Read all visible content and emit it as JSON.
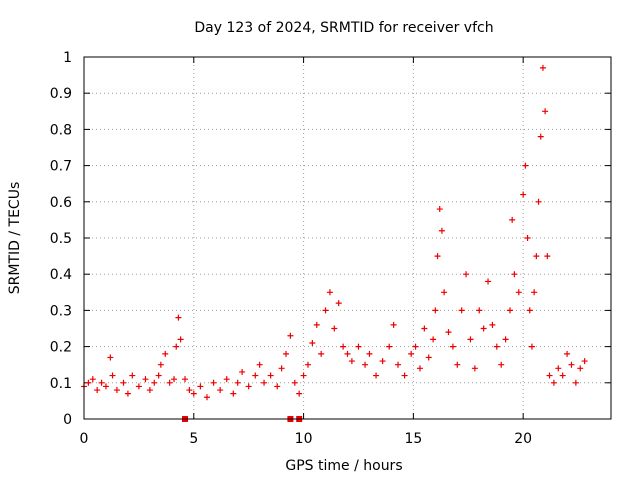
{
  "chart_data": {
    "type": "scatter",
    "title": "Day 123 of 2024, SRMTID for receiver vfch",
    "xlabel": "GPS time / hours",
    "ylabel": "SRMTID / TECUs",
    "xlim": [
      0,
      24
    ],
    "ylim": [
      0,
      1
    ],
    "x_ticks": [
      0,
      5,
      10,
      15,
      20
    ],
    "x_tick_labels": [
      "0",
      "5",
      "10",
      "15",
      "20"
    ],
    "y_ticks": [
      0,
      0.1,
      0.2,
      0.3,
      0.4,
      0.5,
      0.6,
      0.7,
      0.8,
      0.9,
      1
    ],
    "y_tick_labels": [
      "0",
      "0.1",
      "0.2",
      "0.3",
      "0.4",
      "0.5",
      "0.6",
      "0.7",
      "0.8",
      "0.9",
      "1"
    ],
    "grid": true,
    "series": [
      {
        "name": "SRMTID",
        "color": "#ee0000",
        "marker": "plus",
        "x": [
          0.0,
          0.2,
          0.4,
          0.6,
          0.8,
          1.0,
          1.2,
          1.3,
          1.5,
          1.8,
          2.0,
          2.2,
          2.5,
          2.8,
          3.0,
          3.2,
          3.4,
          3.5,
          3.7,
          3.9,
          4.1,
          4.2,
          4.3,
          4.4,
          4.6,
          4.8,
          5.0,
          5.3,
          5.6,
          5.9,
          6.2,
          6.5,
          6.8,
          7.0,
          7.2,
          7.5,
          7.8,
          8.0,
          8.2,
          8.5,
          8.8,
          9.0,
          9.2,
          9.4,
          9.6,
          9.8,
          10.0,
          10.2,
          10.4,
          10.6,
          10.8,
          11.0,
          11.2,
          11.4,
          11.6,
          11.8,
          12.0,
          12.2,
          12.5,
          12.8,
          13.0,
          13.3,
          13.6,
          13.9,
          14.1,
          14.3,
          14.6,
          14.9,
          15.1,
          15.3,
          15.5,
          15.7,
          15.9,
          16.0,
          16.1,
          16.2,
          16.3,
          16.4,
          16.6,
          16.8,
          17.0,
          17.2,
          17.4,
          17.6,
          17.8,
          18.0,
          18.2,
          18.4,
          18.6,
          18.8,
          19.0,
          19.2,
          19.4,
          19.5,
          19.6,
          19.8,
          20.0,
          20.1,
          20.2,
          20.3,
          20.4,
          20.5,
          20.6,
          20.7,
          20.8,
          20.9,
          21.0,
          21.1,
          21.2,
          21.4,
          21.6,
          21.8,
          22.0,
          22.2,
          22.4,
          22.6,
          22.8
        ],
        "y": [
          0.09,
          0.1,
          0.11,
          0.08,
          0.1,
          0.09,
          0.17,
          0.12,
          0.08,
          0.1,
          0.07,
          0.12,
          0.09,
          0.11,
          0.08,
          0.1,
          0.12,
          0.15,
          0.18,
          0.1,
          0.11,
          0.2,
          0.28,
          0.22,
          0.11,
          0.08,
          0.07,
          0.09,
          0.06,
          0.1,
          0.08,
          0.11,
          0.07,
          0.1,
          0.13,
          0.09,
          0.12,
          0.15,
          0.1,
          0.12,
          0.09,
          0.14,
          0.18,
          0.23,
          0.1,
          0.07,
          0.12,
          0.15,
          0.21,
          0.26,
          0.18,
          0.3,
          0.35,
          0.25,
          0.32,
          0.2,
          0.18,
          0.16,
          0.2,
          0.15,
          0.18,
          0.12,
          0.16,
          0.2,
          0.26,
          0.15,
          0.12,
          0.18,
          0.2,
          0.14,
          0.25,
          0.17,
          0.22,
          0.3,
          0.45,
          0.58,
          0.52,
          0.35,
          0.24,
          0.2,
          0.15,
          0.3,
          0.4,
          0.22,
          0.14,
          0.3,
          0.25,
          0.38,
          0.26,
          0.2,
          0.15,
          0.22,
          0.3,
          0.55,
          0.4,
          0.35,
          0.62,
          0.7,
          0.5,
          0.3,
          0.2,
          0.35,
          0.45,
          0.6,
          0.78,
          0.97,
          0.85,
          0.45,
          0.12,
          0.1,
          0.14,
          0.12,
          0.18,
          0.15,
          0.1,
          0.14,
          0.16
        ]
      }
    ],
    "gap_markers_x": [
      4.6,
      9.4,
      9.8
    ],
    "gap_markers_y": [
      0,
      0,
      0
    ]
  }
}
